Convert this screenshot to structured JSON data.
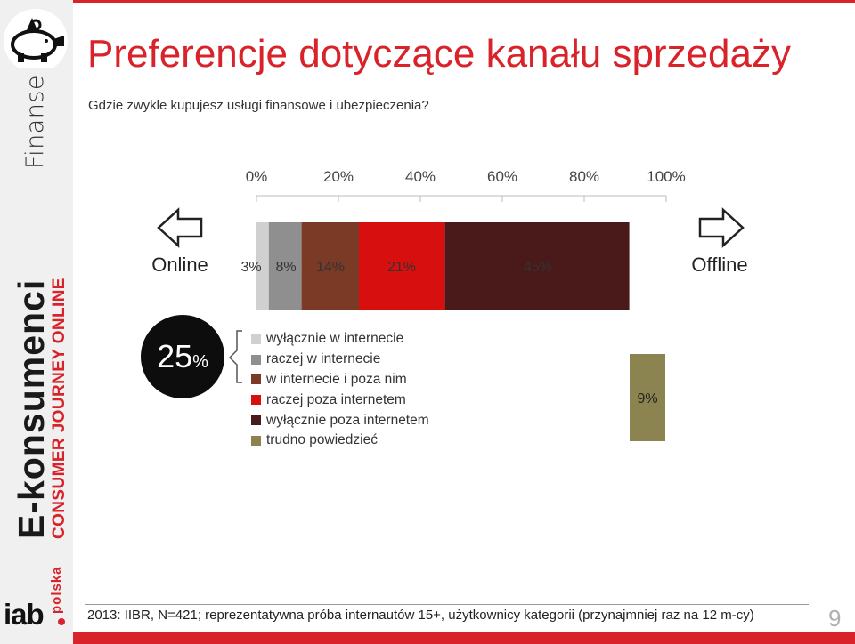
{
  "page": {
    "title": "Preferencje dotyczące kanału sprzedaży",
    "question": "Gdzie zwykle kupujesz usługi finansowe i ubezpieczenia?",
    "footnote": "2013: IIBR, N=421; reprezentatywna próba internautów 15+, użytkownicy kategorii (przynajmniej raz na 12 m-cy)",
    "page_number": "9",
    "accent_color": "#d8232a"
  },
  "sidebar": {
    "section": "Finanse",
    "brand": "E-konsumenci",
    "brand_sub": "CONSUMER JOURNEY ONLINE",
    "logo_main": "iab",
    "logo_sub": "polska"
  },
  "badge": {
    "value": "25",
    "unit": "%"
  },
  "chart_data": {
    "type": "bar",
    "orientation": "horizontal-stacked",
    "x_ticks": [
      "0%",
      "20%",
      "40%",
      "60%",
      "80%",
      "100%"
    ],
    "xlim": [
      0,
      100
    ],
    "left_label": "Online",
    "right_label": "Offline",
    "series": [
      {
        "name": "wyłącznie w internecie",
        "value": 3,
        "label": "3%",
        "color": "#d0d0d0"
      },
      {
        "name": "raczej w internecie",
        "value": 8,
        "label": "8%",
        "color": "#8f8f8f"
      },
      {
        "name": "w internecie i poza nim",
        "value": 14,
        "label": "14%",
        "color": "#7a3a25"
      },
      {
        "name": "raczej poza internetem",
        "value": 21,
        "label": "21%",
        "color": "#d80f0f"
      },
      {
        "name": "wyłącznie poza internetem",
        "value": 45,
        "label": "45%",
        "color": "#4a1a1a"
      },
      {
        "name": "trudno powiedzieć",
        "value": 9,
        "label": "9%",
        "color": "#8c8450"
      }
    ],
    "bracketed_total": "25%"
  }
}
